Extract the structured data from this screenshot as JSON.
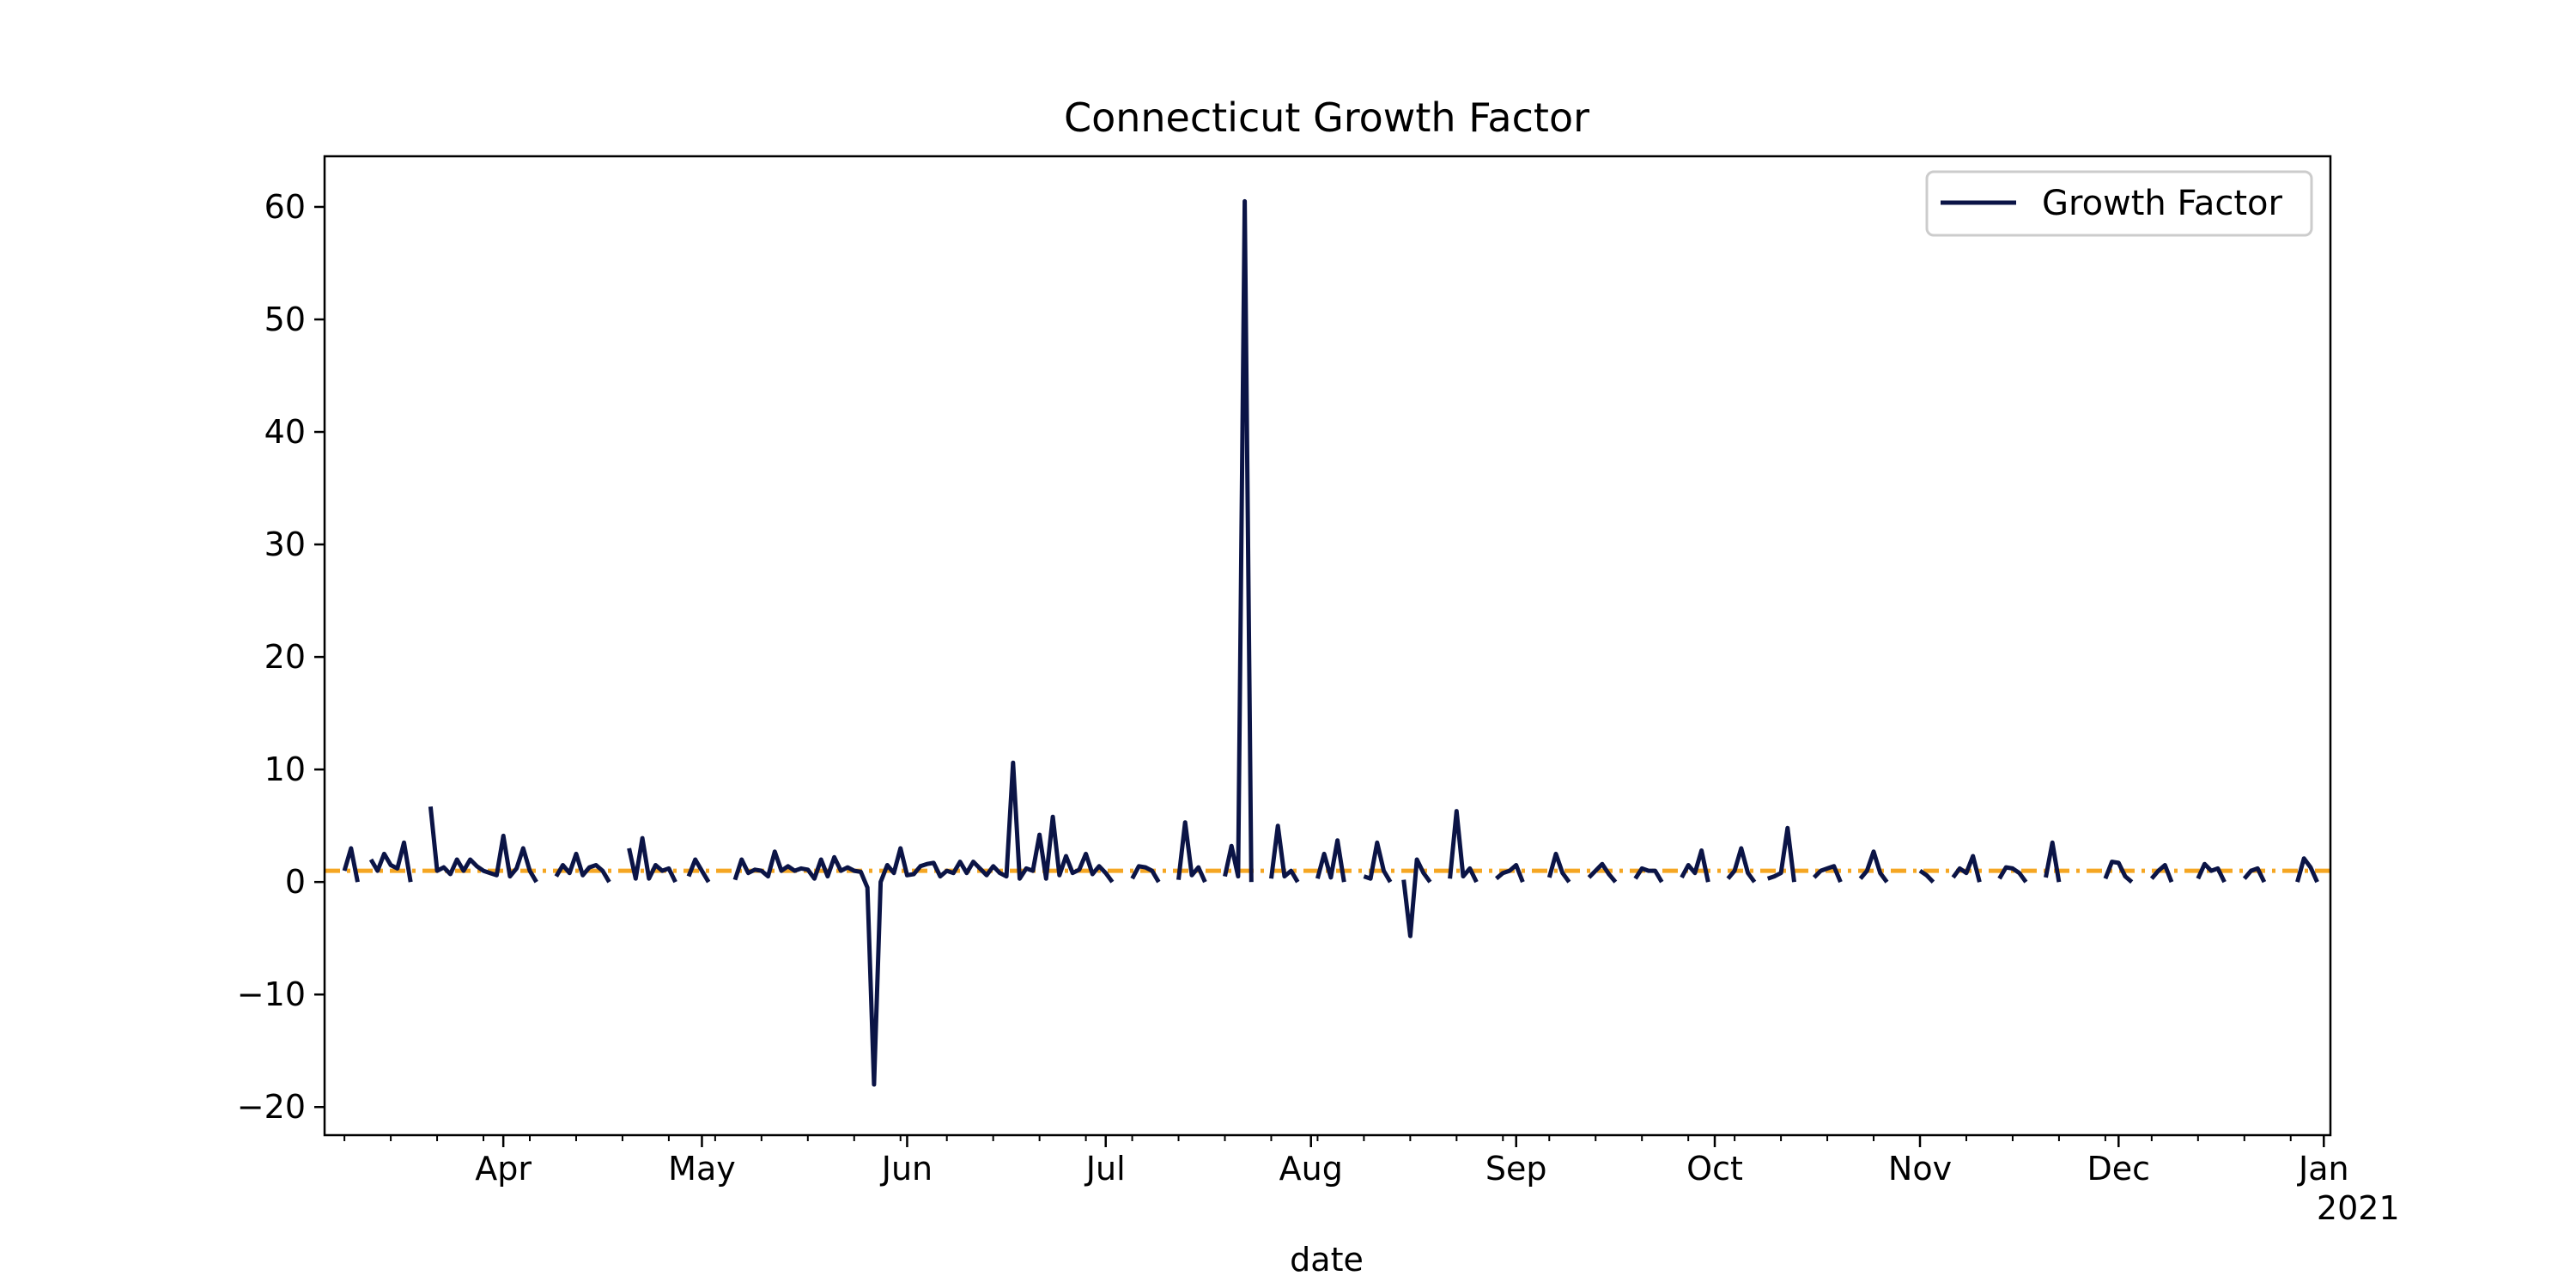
{
  "chart_data": {
    "type": "line",
    "title": "Connecticut Growth Factor",
    "xlabel": "date",
    "ylabel": "",
    "x_range": [
      "2020-03-05",
      "2021-01-02"
    ],
    "ylim": [
      -22.5,
      64.5
    ],
    "y_ticks": [
      60,
      50,
      40,
      30,
      20,
      10,
      0,
      -10,
      -20
    ],
    "y_tick_labels": [
      "60",
      "50",
      "40",
      "30",
      "20",
      "10",
      "0",
      "−10",
      "−20"
    ],
    "x_ticks": [
      {
        "date": "2020-04-01",
        "label": "Apr"
      },
      {
        "date": "2020-05-01",
        "label": "May"
      },
      {
        "date": "2020-06-01",
        "label": "Jun"
      },
      {
        "date": "2020-07-01",
        "label": "Jul"
      },
      {
        "date": "2020-08-01",
        "label": "Aug"
      },
      {
        "date": "2020-09-01",
        "label": "Sep"
      },
      {
        "date": "2020-10-01",
        "label": "Oct"
      },
      {
        "date": "2020-11-01",
        "label": "Nov"
      },
      {
        "date": "2020-12-01",
        "label": "Dec"
      },
      {
        "date": "2021-01-01",
        "label": "Jan",
        "sublabel": "2021"
      }
    ],
    "legend": {
      "placement": "top-right",
      "entries": [
        "Growth Factor"
      ]
    },
    "grid": false,
    "reference_line": {
      "y": 1.0,
      "style": "dash-dot",
      "color": "#f5a623"
    },
    "series": [
      {
        "name": "Growth Factor",
        "color": "#0b1446",
        "points": [
          [
            "2020-03-08",
            1.0
          ],
          [
            "2020-03-09",
            3.0
          ],
          [
            "2020-03-10",
            0.0
          ],
          null,
          [
            "2020-03-12",
            2.0
          ],
          [
            "2020-03-13",
            1.0
          ],
          [
            "2020-03-14",
            2.5
          ],
          [
            "2020-03-15",
            1.5
          ],
          [
            "2020-03-16",
            1.2
          ],
          [
            "2020-03-17",
            3.5
          ],
          [
            "2020-03-18",
            0.0
          ],
          null,
          [
            "2020-03-21",
            6.7
          ],
          [
            "2020-03-22",
            1.0
          ],
          [
            "2020-03-23",
            1.3
          ],
          [
            "2020-03-24",
            0.7
          ],
          [
            "2020-03-25",
            2.0
          ],
          [
            "2020-03-26",
            1.0
          ],
          [
            "2020-03-27",
            2.0
          ],
          [
            "2020-03-28",
            1.4
          ],
          [
            "2020-03-29",
            1.0
          ],
          [
            "2020-03-30",
            0.8
          ],
          [
            "2020-03-31",
            0.6
          ],
          [
            "2020-04-01",
            4.1
          ],
          [
            "2020-04-02",
            0.5
          ],
          [
            "2020-04-03",
            1.2
          ],
          [
            "2020-04-04",
            3.0
          ],
          [
            "2020-04-05",
            1.0
          ],
          [
            "2020-04-06",
            0.0
          ],
          null,
          [
            "2020-04-09",
            0.5
          ],
          [
            "2020-04-10",
            1.5
          ],
          [
            "2020-04-11",
            0.8
          ],
          [
            "2020-04-12",
            2.5
          ],
          [
            "2020-04-13",
            0.6
          ],
          [
            "2020-04-14",
            1.3
          ],
          [
            "2020-04-15",
            1.5
          ],
          [
            "2020-04-16",
            1.0
          ],
          [
            "2020-04-17",
            0.0
          ],
          null,
          [
            "2020-04-20",
            3.0
          ],
          [
            "2020-04-21",
            0.3
          ],
          [
            "2020-04-22",
            3.9
          ],
          [
            "2020-04-23",
            0.3
          ],
          [
            "2020-04-24",
            1.5
          ],
          [
            "2020-04-25",
            1.0
          ],
          [
            "2020-04-26",
            1.2
          ],
          [
            "2020-04-27",
            0.0
          ],
          null,
          [
            "2020-04-29",
            0.5
          ],
          [
            "2020-04-30",
            2.0
          ],
          [
            "2020-05-01",
            1.0
          ],
          [
            "2020-05-02",
            0.0
          ],
          null,
          [
            "2020-05-06",
            0.2
          ],
          [
            "2020-05-07",
            2.0
          ],
          [
            "2020-05-08",
            0.8
          ],
          [
            "2020-05-09",
            1.1
          ],
          [
            "2020-05-10",
            1.0
          ],
          [
            "2020-05-11",
            0.5
          ],
          [
            "2020-05-12",
            2.7
          ],
          [
            "2020-05-13",
            1.0
          ],
          [
            "2020-05-14",
            1.4
          ],
          [
            "2020-05-15",
            1.0
          ],
          [
            "2020-05-16",
            1.2
          ],
          [
            "2020-05-17",
            1.1
          ],
          [
            "2020-05-18",
            0.3
          ],
          [
            "2020-05-19",
            2.0
          ],
          [
            "2020-05-20",
            0.5
          ],
          [
            "2020-05-21",
            2.2
          ],
          [
            "2020-05-22",
            1.0
          ],
          [
            "2020-05-23",
            1.3
          ],
          [
            "2020-05-24",
            1.0
          ],
          [
            "2020-05-25",
            0.9
          ],
          [
            "2020-05-26",
            -0.5
          ],
          [
            "2020-05-27",
            -18.0
          ],
          [
            "2020-05-28",
            0.0
          ],
          [
            "2020-05-29",
            1.5
          ],
          [
            "2020-05-30",
            0.8
          ],
          [
            "2020-05-31",
            3.0
          ],
          [
            "2020-06-01",
            0.6
          ],
          [
            "2020-06-02",
            0.7
          ],
          [
            "2020-06-03",
            1.4
          ],
          [
            "2020-06-04",
            1.6
          ],
          [
            "2020-06-05",
            1.7
          ],
          [
            "2020-06-06",
            0.5
          ],
          [
            "2020-06-07",
            1.0
          ],
          [
            "2020-06-08",
            0.8
          ],
          [
            "2020-06-09",
            1.8
          ],
          [
            "2020-06-10",
            0.8
          ],
          [
            "2020-06-11",
            1.8
          ],
          [
            "2020-06-12",
            1.2
          ],
          [
            "2020-06-13",
            0.6
          ],
          [
            "2020-06-14",
            1.4
          ],
          [
            "2020-06-15",
            0.8
          ],
          [
            "2020-06-16",
            0.5
          ],
          [
            "2020-06-17",
            10.6
          ],
          [
            "2020-06-18",
            0.3
          ],
          [
            "2020-06-19",
            1.2
          ],
          [
            "2020-06-20",
            1.0
          ],
          [
            "2020-06-21",
            4.2
          ],
          [
            "2020-06-22",
            0.3
          ],
          [
            "2020-06-23",
            5.8
          ],
          [
            "2020-06-24",
            0.6
          ],
          [
            "2020-06-25",
            2.3
          ],
          [
            "2020-06-26",
            0.8
          ],
          [
            "2020-06-27",
            1.1
          ],
          [
            "2020-06-28",
            2.5
          ],
          [
            "2020-06-29",
            0.7
          ],
          [
            "2020-06-30",
            1.4
          ],
          [
            "2020-07-01",
            0.8
          ],
          [
            "2020-07-02",
            0.0
          ],
          null,
          [
            "2020-07-05",
            0.3
          ],
          [
            "2020-07-06",
            1.4
          ],
          [
            "2020-07-07",
            1.3
          ],
          [
            "2020-07-08",
            1.0
          ],
          [
            "2020-07-09",
            0.0
          ],
          null,
          [
            "2020-07-12",
            0.2
          ],
          [
            "2020-07-13",
            5.3
          ],
          [
            "2020-07-14",
            0.6
          ],
          [
            "2020-07-15",
            1.3
          ],
          [
            "2020-07-16",
            0.0
          ],
          null,
          [
            "2020-07-19",
            0.5
          ],
          [
            "2020-07-20",
            3.2
          ],
          [
            "2020-07-21",
            0.5
          ],
          [
            "2020-07-22",
            60.5
          ],
          [
            "2020-07-23",
            0.0
          ],
          null,
          [
            "2020-07-26",
            0.3
          ],
          [
            "2020-07-27",
            5.0
          ],
          [
            "2020-07-28",
            0.5
          ],
          [
            "2020-07-29",
            1.0
          ],
          [
            "2020-07-30",
            0.0
          ],
          null,
          [
            "2020-08-02",
            0.3
          ],
          [
            "2020-08-03",
            2.5
          ],
          [
            "2020-08-04",
            0.4
          ],
          [
            "2020-08-05",
            3.7
          ],
          [
            "2020-08-06",
            0.0
          ],
          null,
          [
            "2020-08-09",
            0.5
          ],
          [
            "2020-08-10",
            0.3
          ],
          [
            "2020-08-11",
            3.5
          ],
          [
            "2020-08-12",
            1.0
          ],
          [
            "2020-08-13",
            0.0
          ],
          null,
          [
            "2020-08-15",
            0.2
          ],
          [
            "2020-08-16",
            -4.8
          ],
          [
            "2020-08-17",
            2.0
          ],
          [
            "2020-08-18",
            0.8
          ],
          [
            "2020-08-19",
            0.0
          ],
          null,
          [
            "2020-08-22",
            0.3
          ],
          [
            "2020-08-23",
            6.3
          ],
          [
            "2020-08-24",
            0.5
          ],
          [
            "2020-08-25",
            1.2
          ],
          [
            "2020-08-26",
            0.0
          ],
          null,
          [
            "2020-08-29",
            0.3
          ],
          [
            "2020-08-30",
            0.8
          ],
          [
            "2020-08-31",
            1.0
          ],
          [
            "2020-09-01",
            1.5
          ],
          [
            "2020-09-02",
            0.0
          ],
          null,
          [
            "2020-09-06",
            0.4
          ],
          [
            "2020-09-07",
            2.5
          ],
          [
            "2020-09-08",
            0.8
          ],
          [
            "2020-09-09",
            0.0
          ],
          null,
          [
            "2020-09-12",
            0.4
          ],
          [
            "2020-09-13",
            1.0
          ],
          [
            "2020-09-14",
            1.6
          ],
          [
            "2020-09-15",
            0.7
          ],
          [
            "2020-09-16",
            0.0
          ],
          null,
          [
            "2020-09-19",
            0.3
          ],
          [
            "2020-09-20",
            1.2
          ],
          [
            "2020-09-21",
            1.0
          ],
          [
            "2020-09-22",
            1.0
          ],
          [
            "2020-09-23",
            0.0
          ],
          null,
          [
            "2020-09-26",
            0.4
          ],
          [
            "2020-09-27",
            1.5
          ],
          [
            "2020-09-28",
            0.8
          ],
          [
            "2020-09-29",
            2.8
          ],
          [
            "2020-09-30",
            0.0
          ],
          null,
          [
            "2020-10-03",
            0.3
          ],
          [
            "2020-10-04",
            1.0
          ],
          [
            "2020-10-05",
            3.0
          ],
          [
            "2020-10-06",
            0.8
          ],
          [
            "2020-10-07",
            0.0
          ],
          null,
          [
            "2020-10-09",
            0.3
          ],
          [
            "2020-10-10",
            0.5
          ],
          [
            "2020-10-11",
            0.8
          ],
          [
            "2020-10-12",
            4.8
          ],
          [
            "2020-10-13",
            0.0
          ],
          null,
          [
            "2020-10-16",
            0.4
          ],
          [
            "2020-10-17",
            1.0
          ],
          [
            "2020-10-18",
            1.2
          ],
          [
            "2020-10-19",
            1.4
          ],
          [
            "2020-10-20",
            0.0
          ],
          null,
          [
            "2020-10-23",
            0.3
          ],
          [
            "2020-10-24",
            1.0
          ],
          [
            "2020-10-25",
            2.7
          ],
          [
            "2020-10-26",
            0.8
          ],
          [
            "2020-10-27",
            0.0
          ],
          null,
          [
            "2020-11-01",
            1.0
          ],
          [
            "2020-11-02",
            0.6
          ],
          [
            "2020-11-03",
            0.0
          ],
          null,
          [
            "2020-11-06",
            0.4
          ],
          [
            "2020-11-07",
            1.2
          ],
          [
            "2020-11-08",
            0.8
          ],
          [
            "2020-11-09",
            2.3
          ],
          [
            "2020-11-10",
            0.0
          ],
          null,
          [
            "2020-11-13",
            0.3
          ],
          [
            "2020-11-14",
            1.3
          ],
          [
            "2020-11-15",
            1.2
          ],
          [
            "2020-11-16",
            0.8
          ],
          [
            "2020-11-17",
            0.0
          ],
          null,
          [
            "2020-11-20",
            0.4
          ],
          [
            "2020-11-21",
            3.5
          ],
          [
            "2020-11-22",
            0.0
          ],
          null,
          [
            "2020-11-29",
            0.3
          ],
          [
            "2020-11-30",
            1.8
          ],
          [
            "2020-12-01",
            1.7
          ],
          [
            "2020-12-02",
            0.5
          ],
          [
            "2020-12-03",
            0.0
          ],
          null,
          [
            "2020-12-06",
            0.3
          ],
          [
            "2020-12-07",
            1.0
          ],
          [
            "2020-12-08",
            1.5
          ],
          [
            "2020-12-09",
            0.0
          ],
          null,
          [
            "2020-12-13",
            0.3
          ],
          [
            "2020-12-14",
            1.6
          ],
          [
            "2020-12-15",
            1.0
          ],
          [
            "2020-12-16",
            1.2
          ],
          [
            "2020-12-17",
            0.0
          ],
          null,
          [
            "2020-12-20",
            0.3
          ],
          [
            "2020-12-21",
            1.0
          ],
          [
            "2020-12-22",
            1.2
          ],
          [
            "2020-12-23",
            0.0
          ],
          null,
          [
            "2020-12-28",
            0.0
          ],
          [
            "2020-12-29",
            2.1
          ],
          [
            "2020-12-30",
            1.3
          ],
          [
            "2020-12-31",
            0.0
          ]
        ]
      }
    ]
  }
}
